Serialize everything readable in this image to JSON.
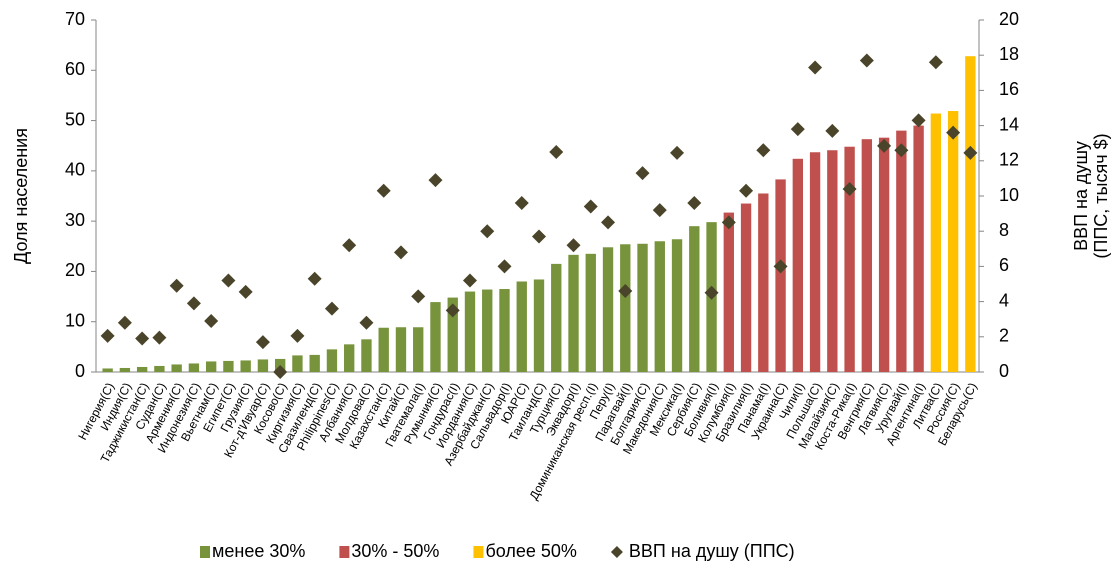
{
  "chart_data": {
    "type": "bar",
    "categories": [
      "Нигерия(С)",
      "Индия(С)",
      "Таджикистан(С)",
      "Судан(С)",
      "Армения(С)",
      "Индонезия(С)",
      "Вьетнам(С)",
      "Египет(С)",
      "Грузия(С)",
      "Кот-д'Ивуар(С)",
      "Косово(С)",
      "Киргизия(С)",
      "Свазиленд(С)",
      "Philippines(С)",
      "Албания(С)",
      "Молдова(С)",
      "Казахстан(С)",
      "Китай(С)",
      "Гватемала(I)",
      "Румыния(С)",
      "Гондурас(I)",
      "Иордания(С)",
      "Азербайджан(С)",
      "Сальвадор(I)",
      "ЮАР(С)",
      "Таиланд(С)",
      "Турция(С)",
      "Эквадор(I)",
      "Доминиканская респ.(I)",
      "Перу(I)",
      "Парагвай(I)",
      "Болгария(С)",
      "Македония(С)",
      "Мексика(I)",
      "Сербия(С)",
      "Боливия(I)",
      "Колумбия(I)",
      "Бразилия(I)",
      "Панама(I)",
      "Украина(С)",
      "Чили(I)",
      "Польша(С)",
      "Малайзия(С)",
      "Коста-Рика(I)",
      "Венгрия(С)",
      "Латвия(С)",
      "Уругвай(I)",
      "Аргентина(I)",
      "Литва(С)",
      "Россия(С)",
      "Беларусь(С)"
    ],
    "series": [
      {
        "name": "менее 30%",
        "color": "#77933c",
        "type": "bar",
        "values": [
          0.7,
          0.8,
          1.0,
          1.2,
          1.5,
          1.7,
          2.1,
          2.2,
          2.3,
          2.5,
          2.6,
          3.3,
          3.4,
          4.5,
          5.5,
          6.5,
          8.8,
          8.9,
          8.9,
          13.9,
          14.8,
          16.0,
          16.4,
          16.5,
          18.0,
          18.4,
          21.5,
          23.3,
          23.5,
          24.8,
          25.4,
          25.5,
          26.0,
          26.4,
          29.0,
          29.8,
          null,
          null,
          null,
          null,
          null,
          null,
          null,
          null,
          null,
          null,
          null,
          null,
          null,
          null,
          null
        ]
      },
      {
        "name": "30% - 50%",
        "color": "#c0504d",
        "type": "bar",
        "values": [
          null,
          null,
          null,
          null,
          null,
          null,
          null,
          null,
          null,
          null,
          null,
          null,
          null,
          null,
          null,
          null,
          null,
          null,
          null,
          null,
          null,
          null,
          null,
          null,
          null,
          null,
          null,
          null,
          null,
          null,
          null,
          null,
          null,
          null,
          null,
          null,
          31.7,
          33.5,
          35.5,
          38.3,
          42.4,
          43.7,
          44.1,
          44.8,
          46.3,
          46.6,
          48.0,
          49.0,
          null,
          null,
          null
        ]
      },
      {
        "name": "более 50%",
        "color": "#ffc000",
        "type": "bar",
        "values": [
          null,
          null,
          null,
          null,
          null,
          null,
          null,
          null,
          null,
          null,
          null,
          null,
          null,
          null,
          null,
          null,
          null,
          null,
          null,
          null,
          null,
          null,
          null,
          null,
          null,
          null,
          null,
          null,
          null,
          null,
          null,
          null,
          null,
          null,
          null,
          null,
          null,
          null,
          null,
          null,
          null,
          null,
          null,
          null,
          null,
          null,
          null,
          null,
          51.4,
          51.9,
          62.8
        ]
      },
      {
        "name": "ВВП на душу (ППС)",
        "color": "#4a452a",
        "type": "scatter",
        "axis": "y2",
        "values": [
          2.05,
          2.8,
          1.9,
          1.95,
          4.9,
          3.9,
          2.9,
          5.2,
          4.55,
          1.7,
          0.0,
          2.05,
          5.3,
          3.6,
          7.2,
          2.8,
          10.3,
          6.8,
          4.3,
          10.9,
          3.5,
          5.2,
          8.0,
          6.0,
          9.6,
          7.7,
          12.5,
          7.2,
          9.4,
          8.5,
          4.6,
          11.3,
          9.2,
          12.45,
          9.6,
          4.5,
          8.5,
          10.3,
          12.6,
          6.0,
          13.8,
          17.3,
          13.7,
          10.4,
          17.7,
          12.85,
          12.6,
          14.3,
          17.6,
          13.6,
          12.45
        ]
      }
    ],
    "y_label": "Доля населения",
    "y2_label": [
      "ВВП на душу",
      "(ППС, тысяч $)"
    ],
    "ylim": [
      0,
      70
    ],
    "yticks": [
      0,
      10,
      20,
      30,
      40,
      50,
      60,
      70
    ],
    "y2lim": [
      0,
      20
    ],
    "y2ticks": [
      0,
      2,
      4,
      6,
      8,
      10,
      12,
      14,
      16,
      18,
      20
    ],
    "grid": false,
    "legend": "bottom"
  }
}
